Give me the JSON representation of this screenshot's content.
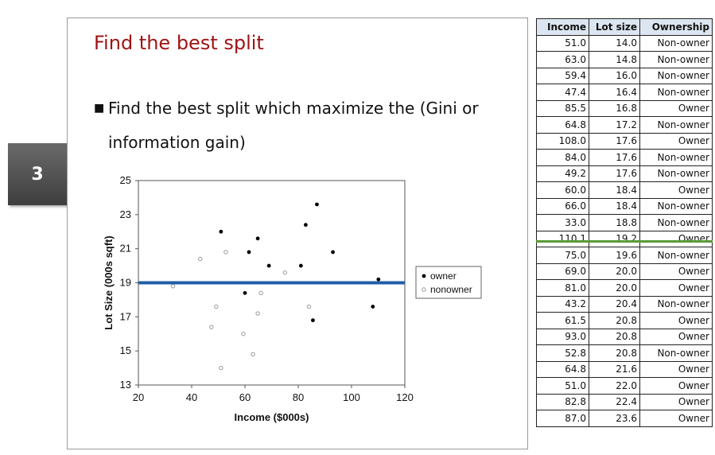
{
  "slide_number": "3",
  "slide": {
    "title": "Find the best split",
    "bullet": "Find the best split which maximize the (Gini or information gain)"
  },
  "chart_data": {
    "type": "scatter",
    "xlabel": "Income ($000s)",
    "ylabel": "Lot Size (000s sqft)",
    "xlim": [
      20,
      120
    ],
    "ylim": [
      13,
      25
    ],
    "xticks": [
      "20",
      "40",
      "60",
      "80",
      "100",
      "120"
    ],
    "yticks": [
      "13",
      "15",
      "17",
      "19",
      "21",
      "23",
      "25"
    ],
    "legend_position": "right",
    "split_y": 19,
    "split_color": "#1f5fa8",
    "series": [
      {
        "name": "owner",
        "color": "#000000",
        "points": [
          [
            60.0,
            18.4
          ],
          [
            85.5,
            16.8
          ],
          [
            64.8,
            21.6
          ],
          [
            61.5,
            20.8
          ],
          [
            87.0,
            23.6
          ],
          [
            110.1,
            19.2
          ],
          [
            108.0,
            17.6
          ],
          [
            82.8,
            22.4
          ],
          [
            69.0,
            20.0
          ],
          [
            93.0,
            20.8
          ],
          [
            51.0,
            22.0
          ],
          [
            81.0,
            20.0
          ]
        ]
      },
      {
        "name": "nonowner",
        "color": "#999999",
        "points": [
          [
            75.0,
            19.6
          ],
          [
            52.8,
            20.8
          ],
          [
            64.8,
            17.2
          ],
          [
            43.2,
            20.4
          ],
          [
            84.0,
            17.6
          ],
          [
            49.2,
            17.6
          ],
          [
            59.4,
            16.0
          ],
          [
            66.0,
            18.4
          ],
          [
            47.4,
            16.4
          ],
          [
            33.0,
            18.8
          ],
          [
            51.0,
            14.0
          ],
          [
            63.0,
            14.8
          ]
        ]
      }
    ]
  },
  "table": {
    "headers": [
      "Income",
      "Lot size",
      "Ownership"
    ],
    "rows": [
      [
        "51.0",
        "14.0",
        "Non-owner"
      ],
      [
        "63.0",
        "14.8",
        "Non-owner"
      ],
      [
        "59.4",
        "16.0",
        "Non-owner"
      ],
      [
        "47.4",
        "16.4",
        "Non-owner"
      ],
      [
        "85.5",
        "16.8",
        "Owner"
      ],
      [
        "64.8",
        "17.2",
        "Non-owner"
      ],
      [
        "108.0",
        "17.6",
        "Owner"
      ],
      [
        "84.0",
        "17.6",
        "Non-owner"
      ],
      [
        "49.2",
        "17.6",
        "Non-owner"
      ],
      [
        "60.0",
        "18.4",
        "Owner"
      ],
      [
        "66.0",
        "18.4",
        "Non-owner"
      ],
      [
        "33.0",
        "18.8",
        "Non-owner"
      ],
      [
        "110.1",
        "19.2",
        "Owner"
      ],
      [
        "75.0",
        "19.6",
        "Non-owner"
      ],
      [
        "69.0",
        "20.0",
        "Owner"
      ],
      [
        "81.0",
        "20.0",
        "Owner"
      ],
      [
        "43.2",
        "20.4",
        "Non-owner"
      ],
      [
        "61.5",
        "20.8",
        "Owner"
      ],
      [
        "93.0",
        "20.8",
        "Owner"
      ],
      [
        "52.8",
        "20.8",
        "Non-owner"
      ],
      [
        "64.8",
        "21.6",
        "Owner"
      ],
      [
        "51.0",
        "22.0",
        "Owner"
      ],
      [
        "82.8",
        "22.4",
        "Owner"
      ],
      [
        "87.0",
        "23.6",
        "Owner"
      ]
    ],
    "split_line_color": "#5a9a3a"
  }
}
